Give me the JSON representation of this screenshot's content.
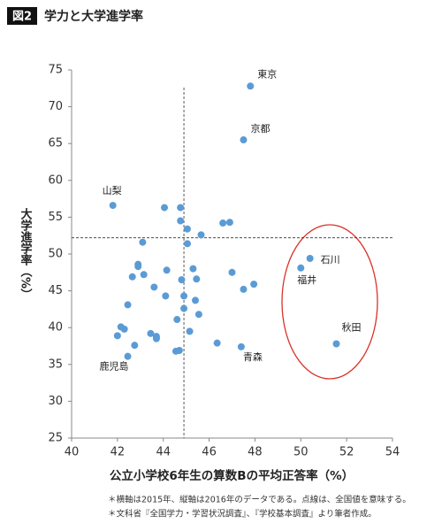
{
  "chart_data": {
    "type": "scatter",
    "figure_label": "図2",
    "title": "学力と大学進学率",
    "x_label": "公立小学校6年生の算数Bの平均正答率（%）",
    "y_label": "大学進学率（%）",
    "notes": [
      "＊横軸は2015年、縦軸は2016年のデータである。点線は、全国値を意味する。",
      "＊文科省『全国学力・学習状況調査』、『学校基本調査』より筆者作成。"
    ],
    "color": "#5b9bd5",
    "xlim": [
      40,
      54
    ],
    "xticks": [
      40,
      42,
      44,
      46,
      48,
      50,
      52,
      54
    ],
    "ylim": [
      25,
      75
    ],
    "yticks": [
      25,
      30,
      35,
      40,
      45,
      50,
      55,
      60,
      65,
      70,
      75
    ],
    "reference_lines": {
      "x": 44.9,
      "y": 52.2
    },
    "x": [
      47.8,
      47.5,
      41.8,
      44.05,
      44.75,
      44.75,
      46.6,
      46.9,
      45.05,
      45.65,
      43.1,
      45.05,
      42.9,
      42.9,
      50.4,
      50.0,
      44.15,
      45.3,
      47.0,
      42.65,
      43.15,
      45.45,
      44.8,
      47.95,
      47.5,
      43.6,
      44.1,
      44.9,
      45.4,
      42.45,
      44.9,
      45.55,
      44.6,
      42.15,
      42.3,
      43.45,
      45.15,
      42.0,
      43.7,
      43.7,
      51.55,
      46.35,
      47.4,
      42.75,
      44.7,
      44.55,
      42.45
    ],
    "y": [
      72.8,
      65.5,
      56.6,
      56.3,
      56.3,
      54.5,
      54.2,
      54.3,
      53.4,
      52.6,
      51.6,
      51.4,
      48.6,
      48.3,
      49.4,
      48.1,
      47.8,
      48.0,
      47.5,
      46.9,
      47.2,
      46.6,
      46.5,
      45.9,
      45.2,
      45.5,
      44.3,
      44.3,
      43.7,
      43.1,
      42.6,
      41.8,
      41.1,
      40.1,
      39.8,
      39.2,
      39.5,
      38.9,
      38.8,
      38.5,
      37.8,
      37.9,
      37.4,
      37.6,
      36.9,
      36.8,
      36.1
    ],
    "point_labels": [
      "東京",
      "京都",
      "山梨",
      null,
      null,
      null,
      null,
      null,
      null,
      null,
      null,
      null,
      null,
      null,
      "石川",
      "福井",
      null,
      null,
      null,
      null,
      null,
      null,
      null,
      null,
      null,
      null,
      null,
      null,
      null,
      null,
      null,
      null,
      null,
      null,
      null,
      null,
      null,
      null,
      null,
      null,
      "秋田",
      null,
      "青森",
      null,
      null,
      null,
      "鹿児島"
    ]
  }
}
